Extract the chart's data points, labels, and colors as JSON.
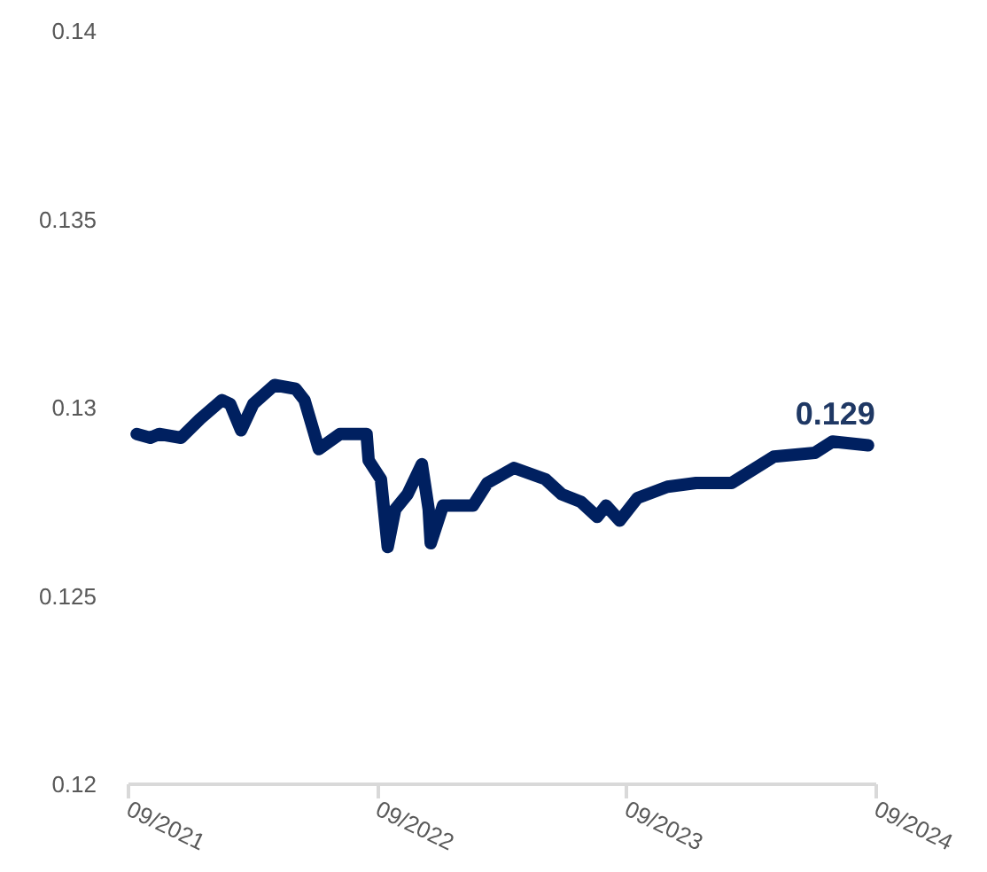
{
  "chart_data": {
    "type": "line",
    "x": [
      "2021-09-13",
      "2021-10-03",
      "2021-10-16",
      "2021-11-17",
      "2021-12-15",
      "2022-01-16",
      "2022-01-28",
      "2022-02-13",
      "2022-03-03",
      "2022-04-03",
      "2022-05-04",
      "2022-05-17",
      "2022-05-30",
      "2022-06-07",
      "2022-07-08",
      "2022-08-16",
      "2022-08-19",
      "2022-09-06",
      "2022-09-16",
      "2022-09-27",
      "2022-10-15",
      "2022-11-05",
      "2022-11-15",
      "2022-11-18",
      "2022-12-06",
      "2023-01-19",
      "2023-02-09",
      "2023-03-20",
      "2023-05-05",
      "2023-05-29",
      "2023-06-26",
      "2023-07-20",
      "2023-08-02",
      "2023-08-22",
      "2023-09-17",
      "2023-10-31",
      "2023-12-12",
      "2024-02-02",
      "2024-04-04",
      "2024-06-03",
      "2024-06-29",
      "2024-08-20"
    ],
    "series": [
      {
        "color": "#002060",
        "values": [
          0.1293,
          0.1292,
          0.1293,
          0.1292,
          0.1297,
          0.1302,
          0.1301,
          0.1294,
          0.1301,
          0.1306,
          0.1305,
          0.1302,
          0.1294,
          0.1289,
          0.1293,
          0.1293,
          0.1286,
          0.1281,
          0.1263,
          0.1273,
          0.1277,
          0.1285,
          0.1273,
          0.1264,
          0.1274,
          0.1274,
          0.128,
          0.1284,
          0.1281,
          0.1277,
          0.1275,
          0.1271,
          0.1274,
          0.127,
          0.1276,
          0.1279,
          0.128,
          0.128,
          0.1287,
          0.1288,
          0.1291,
          0.129
        ],
        "value_labels": [
          null,
          null,
          null,
          null,
          null,
          null,
          null,
          null,
          null,
          null,
          null,
          null,
          null,
          null,
          null,
          null,
          null,
          null,
          null,
          null,
          null,
          null,
          null,
          null,
          null,
          null,
          null,
          null,
          null,
          null,
          null,
          null,
          null,
          null,
          null,
          null,
          null,
          null,
          null,
          null,
          null,
          "0.129"
        ]
      }
    ],
    "xlim": [
      "2021-09",
      "2024-09"
    ],
    "xticks": [
      {
        "value": "2021-09",
        "label": "09/2021"
      },
      {
        "value": "2022-09",
        "label": "09/2022"
      },
      {
        "value": "2023-09",
        "label": "09/2023"
      },
      {
        "value": "2024-09",
        "label": "09/2024"
      }
    ],
    "ylim": [
      0.12,
      0.14
    ],
    "yticks": [
      0.12,
      0.125,
      0.13,
      0.135,
      0.14
    ],
    "grid": false,
    "marker": "none",
    "line_style": "solid"
  }
}
